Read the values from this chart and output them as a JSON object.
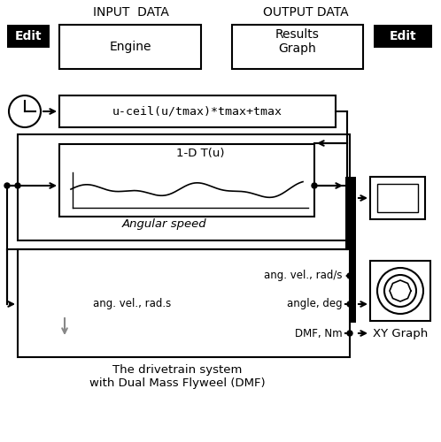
{
  "bg_color": "#ffffff",
  "input_label": "INPUT  DATA",
  "output_label": "OUTPUT DATA",
  "edit_label": "Edit",
  "engine_label": "Engine",
  "results_label": "Results\nGraph",
  "clock_formula": "u-ceil(u/tmax)*tmax+tmax",
  "lookup_label": "1-D T(u)",
  "angular_speed_label": "Angular speed",
  "ang_vel_input": "ang. vel., rad.s",
  "ang_vel_output": "ang. vel., rad/s",
  "angle_output": "angle, deg",
  "dmf_output": "DMF, Nm",
  "drivetrain_label": "The drivetrain system\nwith Dual Mass Flyweel (DMF)",
  "xy_graph_label": "XY Graph"
}
